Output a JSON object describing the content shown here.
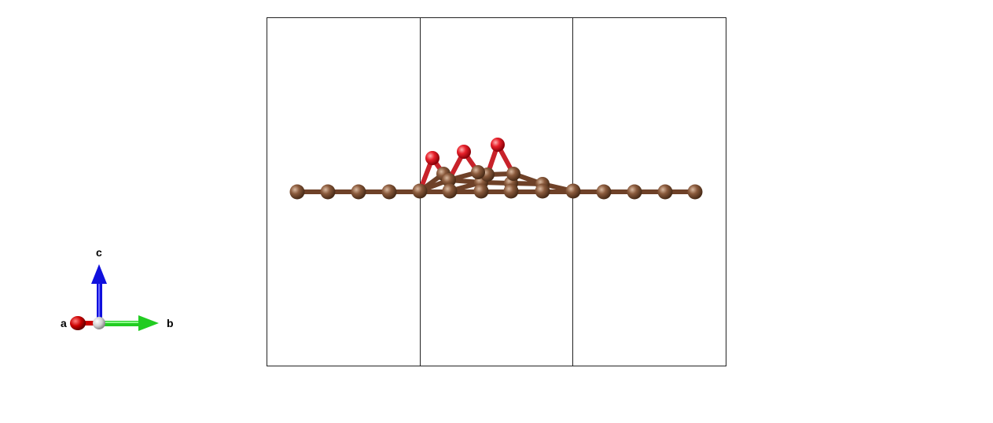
{
  "axes_indicator": {
    "a_label": "a",
    "b_label": "b",
    "c_label": "c",
    "a_color": "#cc0000",
    "b_color": "#22cc22",
    "c_color": "#1010dd",
    "origin_color": "#d9d9d9"
  },
  "structure": {
    "unit_cell_repeats_along_b": 3,
    "carbon_color": "#8a5a3c",
    "oxygen_color": "#e8202a",
    "bond_color": "#7a4a2e",
    "carbon_chain_count": 14,
    "oxygen_atom_count": 3
  }
}
